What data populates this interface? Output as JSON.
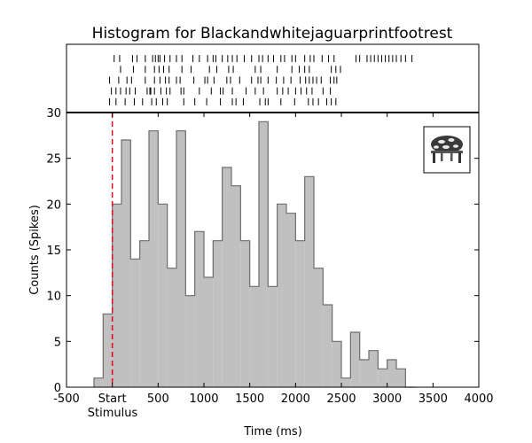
{
  "chart_data": {
    "type": "bar",
    "title": "Histogram for Blackandwhitejaguarprintfootrest",
    "xlabel": "Time (ms)",
    "ylabel": "Counts (Spikes)",
    "xlim": [
      -500,
      4000
    ],
    "ylim": [
      0,
      30
    ],
    "xticks": [
      -500,
      0,
      500,
      1000,
      1500,
      2000,
      2500,
      3000,
      3500,
      4000
    ],
    "xtick_labels": [
      "-500",
      "Start",
      "500",
      "1000",
      "1500",
      "2000",
      "2500",
      "3000",
      "3500",
      "4000"
    ],
    "xtick_sublabel": "Stimulus",
    "yticks": [
      0,
      5,
      10,
      15,
      20,
      25,
      30
    ],
    "bin_width": 100,
    "bins_start": [
      -200,
      -100,
      0,
      100,
      200,
      300,
      400,
      500,
      600,
      700,
      800,
      900,
      1000,
      1100,
      1200,
      1300,
      1400,
      1500,
      1600,
      1700,
      1800,
      1900,
      2000,
      2100,
      2200,
      2300,
      2400,
      2500,
      2600,
      2700,
      2800,
      2900,
      3000,
      3100,
      3200
    ],
    "values": [
      1,
      8,
      20,
      27,
      14,
      16,
      28,
      20,
      13,
      28,
      10,
      17,
      12,
      16,
      24,
      22,
      16,
      11,
      29,
      11,
      20,
      19,
      16,
      23,
      13,
      9,
      5,
      1,
      6,
      3,
      4,
      2,
      3,
      2,
      0
    ],
    "stimulus_marker_x": 0,
    "raster": [
      [
        20,
        80,
        220,
        270,
        360,
        440,
        470,
        500,
        520,
        570,
        630,
        700,
        760,
        880,
        950,
        1040,
        1100,
        1130,
        1200,
        1260,
        1310,
        1360,
        1440,
        1520,
        1600,
        1640,
        1700,
        1760,
        1840,
        1880,
        1960,
        2000,
        2100,
        2160,
        2200,
        2290,
        2360,
        2420,
        2660,
        2700,
        2780,
        2820,
        2860,
        2900,
        2940,
        2980,
        3020,
        3060,
        3100,
        3150,
        3200,
        3270
      ],
      [
        90,
        230,
        360,
        460,
        510,
        560,
        620,
        760,
        860,
        1060,
        1140,
        1270,
        1320,
        1560,
        1620,
        1800,
        1960,
        2040,
        2100,
        2150,
        2390,
        2440,
        2490
      ],
      [
        -30,
        70,
        160,
        210,
        360,
        460,
        520,
        580,
        620,
        700,
        740,
        890,
        1010,
        1040,
        1110,
        1250,
        1290,
        1390,
        1520,
        1590,
        1620,
        1700,
        1790,
        1870,
        1950,
        2050,
        2110,
        2150,
        2190,
        2230,
        2280,
        2380,
        2420,
        2450
      ],
      [
        -10,
        40,
        90,
        150,
        190,
        250,
        380,
        410,
        420,
        460,
        530,
        590,
        630,
        750,
        780,
        950,
        1080,
        1180,
        1210,
        1310,
        1460,
        1560,
        1650,
        1800,
        1860,
        1920,
        2000,
        2060,
        2120,
        2180,
        2300,
        2380
      ],
      [
        -30,
        40,
        140,
        240,
        330,
        430,
        480,
        550,
        600,
        780,
        900,
        1030,
        1180,
        1310,
        1350,
        1430,
        1610,
        1670,
        1700,
        1840,
        1990,
        2140,
        2190,
        2250,
        2340,
        2390,
        2440
      ]
    ]
  },
  "inset": {
    "icon": "footrest-thumbnail-icon"
  },
  "colors": {
    "bars_fill": "#c0c0c0",
    "bars_edge": "#6d6d6d",
    "stimulus_line": "#e8001c",
    "axes": "#000000"
  }
}
